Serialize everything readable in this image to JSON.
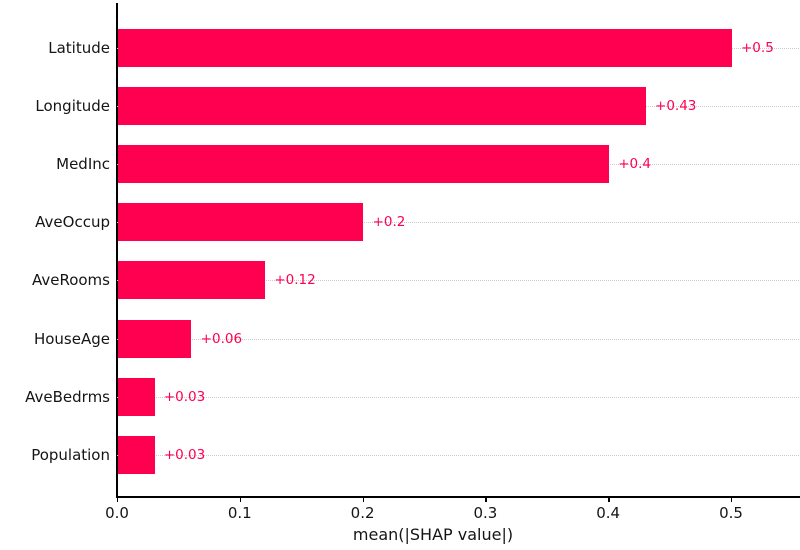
{
  "chart_data": {
    "type": "bar",
    "orientation": "horizontal",
    "title": "",
    "xlabel": "mean(|SHAP value|)",
    "ylabel": "",
    "categories": [
      "Latitude",
      "Longitude",
      "MedInc",
      "AveOccup",
      "AveRooms",
      "HouseAge",
      "AveBedrms",
      "Population"
    ],
    "values": [
      0.5,
      0.43,
      0.4,
      0.2,
      0.12,
      0.06,
      0.03,
      0.03
    ],
    "value_labels": [
      "+0.5",
      "+0.43",
      "+0.4",
      "+0.2",
      "+0.12",
      "+0.06",
      "+0.03",
      "+0.03"
    ],
    "x_ticks": [
      {
        "value": 0.0,
        "label": "0.0"
      },
      {
        "value": 0.1,
        "label": "0.1"
      },
      {
        "value": 0.2,
        "label": "0.2"
      },
      {
        "value": 0.3,
        "label": "0.3"
      },
      {
        "value": 0.4,
        "label": "0.4"
      },
      {
        "value": 0.5,
        "label": "0.5"
      }
    ],
    "xlim": [
      0,
      0.555
    ],
    "bar_color": "#ff0051",
    "value_label_color": "#ff0051",
    "gridline_style": "horizontal-dotted",
    "gridline_color": "#cbcbcb",
    "legend": "none"
  }
}
